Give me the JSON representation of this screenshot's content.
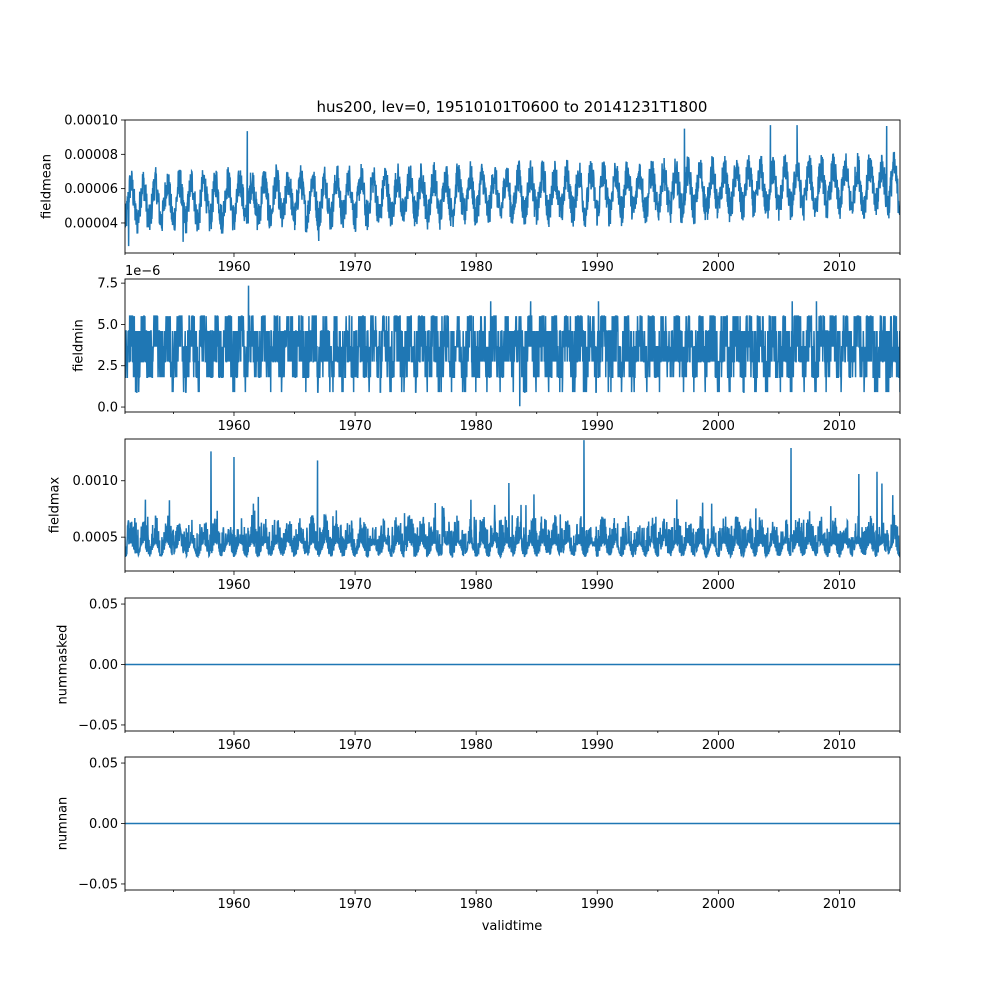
{
  "figure": {
    "title": "hus200, lev=0, 19510101T0600 to 20141231T1800",
    "xlabel": "validtime"
  },
  "chart_data": [
    {
      "type": "line",
      "id": "fieldmean",
      "ylabel": "fieldmean",
      "offset_text": "",
      "xlim": [
        1951.0,
        2015.0
      ],
      "ylim": [
        2.25e-05,
        0.0001
      ],
      "yticks": [
        4e-05,
        6e-05,
        8e-05,
        0.0001
      ],
      "ytick_labels": [
        "0.00004",
        "0.00006",
        "0.00008",
        "0.00010"
      ],
      "xticks": [
        1960,
        1970,
        1980,
        1990,
        2000,
        2010
      ],
      "xtick_labels": [
        "1960",
        "1970",
        "1980",
        "1990",
        "2000",
        "2010"
      ],
      "series": [
        {
          "color": "#1f77b4",
          "seasonal": {
            "base": 5.2e-05,
            "amp": 1.1e-05,
            "noise": 9.5e-06,
            "trend_per_year": 1.5e-07
          },
          "spikes": [
            [
              1951.3,
              2.65e-05
            ],
            [
              1955.8,
              2.9e-05
            ],
            [
              1961.1,
              9.35e-05
            ],
            [
              1967.0,
              2.95e-05
            ],
            [
              1997.2,
              9.5e-05
            ],
            [
              2004.3,
              9.7e-05
            ],
            [
              2006.5,
              9.7e-05
            ],
            [
              2013.9,
              9.65e-05
            ]
          ]
        }
      ]
    },
    {
      "type": "line",
      "id": "fieldmin",
      "ylabel": "fieldmin",
      "offset_text": "1e−6",
      "scale": 1e-06,
      "xlim": [
        1951.0,
        2015.0
      ],
      "ylim": [
        -0.3,
        7.75
      ],
      "yticks": [
        0.0,
        2.5,
        5.0,
        7.5
      ],
      "ytick_labels": [
        "0.0",
        "2.5",
        "5.0",
        "7.5"
      ],
      "xticks": [
        1960,
        1970,
        1980,
        1990,
        2000,
        2010
      ],
      "xtick_labels": [
        "1960",
        "1970",
        "1980",
        "1990",
        "2000",
        "2010"
      ],
      "series": [
        {
          "color": "#1f77b4",
          "levels": [
            0.9,
            1.8,
            2.75,
            3.65,
            4.6,
            5.5
          ],
          "spikes": [
            [
              1961.2,
              7.35
            ],
            [
              1981.2,
              6.4
            ],
            [
              1983.6,
              0.05
            ],
            [
              1984.5,
              6.4
            ],
            [
              1990.1,
              6.4
            ],
            [
              2006.1,
              6.4
            ],
            [
              2008.1,
              6.4
            ]
          ]
        }
      ]
    },
    {
      "type": "line",
      "id": "fieldmax",
      "ylabel": "fieldmax",
      "offset_text": "",
      "xlim": [
        1951.0,
        2015.0
      ],
      "ylim": [
        0.0002,
        0.00137
      ],
      "yticks": [
        0.0005,
        0.001
      ],
      "ytick_labels": [
        "0.0005",
        "0.0010"
      ],
      "xticks": [
        1960,
        1970,
        1980,
        1990,
        2000,
        2010
      ],
      "xtick_labels": [
        "1960",
        "1970",
        "1980",
        "1990",
        "2000",
        "2010"
      ],
      "series": [
        {
          "color": "#1f77b4",
          "band": {
            "base": 0.00043,
            "amp": 6e-05,
            "noise": 0.00013
          },
          "spikes": [
            [
              1958.1,
              0.00126
            ],
            [
              1960.0,
              0.00121
            ],
            [
              1966.9,
              0.00118
            ],
            [
              1982.7,
              0.00098
            ],
            [
              1988.9,
              0.00136
            ],
            [
              2006.0,
              0.00129
            ],
            [
              2011.6,
              0.00106
            ],
            [
              2013.1,
              0.00108
            ]
          ]
        }
      ]
    },
    {
      "type": "line",
      "id": "nummasked",
      "ylabel": "nummasked",
      "offset_text": "",
      "xlim": [
        1951.0,
        2015.0
      ],
      "ylim": [
        -0.055,
        0.055
      ],
      "yticks": [
        -0.05,
        0.0,
        0.05
      ],
      "ytick_labels": [
        "−0.05",
        "0.00",
        "0.05"
      ],
      "xticks": [
        1960,
        1970,
        1980,
        1990,
        2000,
        2010
      ],
      "xtick_labels": [
        "1960",
        "1970",
        "1980",
        "1990",
        "2000",
        "2010"
      ],
      "series": [
        {
          "color": "#1f77b4",
          "constant": 0.0
        }
      ]
    },
    {
      "type": "line",
      "id": "numnan",
      "ylabel": "numnan",
      "offset_text": "",
      "xlim": [
        1951.0,
        2015.0
      ],
      "ylim": [
        -0.055,
        0.055
      ],
      "yticks": [
        -0.05,
        0.0,
        0.05
      ],
      "ytick_labels": [
        "−0.05",
        "0.00",
        "0.05"
      ],
      "xticks": [
        1960,
        1970,
        1980,
        1990,
        2000,
        2010
      ],
      "xtick_labels": [
        "1960",
        "1970",
        "1980",
        "1990",
        "2000",
        "2010"
      ],
      "series": [
        {
          "color": "#1f77b4",
          "constant": 0.0
        }
      ]
    }
  ]
}
